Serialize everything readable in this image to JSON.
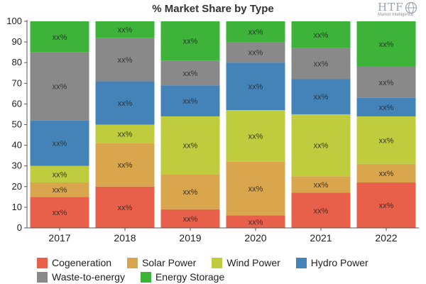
{
  "chart_data": {
    "type": "bar",
    "stacked": true,
    "title": "% Market Share by Type",
    "categories": [
      "2017",
      "2018",
      "2019",
      "2020",
      "2021",
      "2022"
    ],
    "ylim": [
      0,
      100
    ],
    "yticks": [
      0,
      10,
      20,
      30,
      40,
      50,
      60,
      70,
      80,
      90,
      100
    ],
    "grid": false,
    "legend_position": "bottom",
    "data_label_text": "xx%",
    "series": [
      {
        "name": "Cogeneration",
        "color": "#e8604a",
        "values": [
          15,
          20,
          9,
          6,
          17,
          22
        ]
      },
      {
        "name": "Solar Power",
        "color": "#d9a54d",
        "values": [
          7,
          21,
          17,
          26,
          8,
          9
        ]
      },
      {
        "name": "Wind Power",
        "color": "#bfcc3e",
        "values": [
          8,
          9,
          28,
          25,
          30,
          23
        ]
      },
      {
        "name": "Hydro Power",
        "color": "#4383b8",
        "values": [
          22,
          21,
          15,
          23,
          17,
          9
        ]
      },
      {
        "name": "Waste-to-energy",
        "color": "#898989",
        "values": [
          33,
          21,
          12,
          10,
          15,
          15
        ]
      },
      {
        "name": "Energy Storage",
        "color": "#3db33a",
        "values": [
          15,
          8,
          19,
          10,
          13,
          22
        ]
      }
    ]
  },
  "logo": {
    "brand": "HTF",
    "tagline": "Market Intelligence"
  }
}
